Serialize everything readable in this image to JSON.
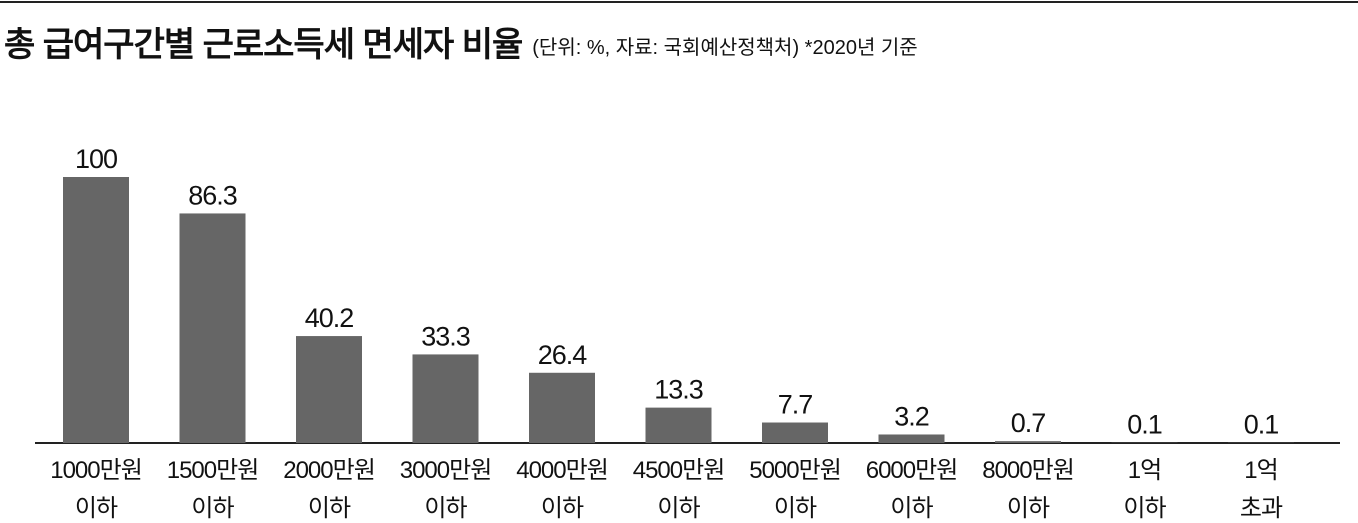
{
  "chart_data": {
    "type": "bar",
    "title": "총 급여구간별 근로소득세 면세자 비율",
    "subtitle": "(단위: %, 자료: 국회예산정책처)  *2020년 기준",
    "categories": [
      [
        "1000만원",
        "이하"
      ],
      [
        "1500만원",
        "이하"
      ],
      [
        "2000만원",
        "이하"
      ],
      [
        "3000만원",
        "이하"
      ],
      [
        "4000만원",
        "이하"
      ],
      [
        "4500만원",
        "이하"
      ],
      [
        "5000만원",
        "이하"
      ],
      [
        "6000만원",
        "이하"
      ],
      [
        "8000만원",
        "이하"
      ],
      [
        "1억",
        "이하"
      ],
      [
        "1억",
        "초과"
      ]
    ],
    "values": [
      100,
      86.3,
      40.2,
      33.3,
      26.4,
      13.3,
      7.7,
      3.2,
      0.7,
      0.1,
      0.1
    ],
    "color": "#666666"
  }
}
